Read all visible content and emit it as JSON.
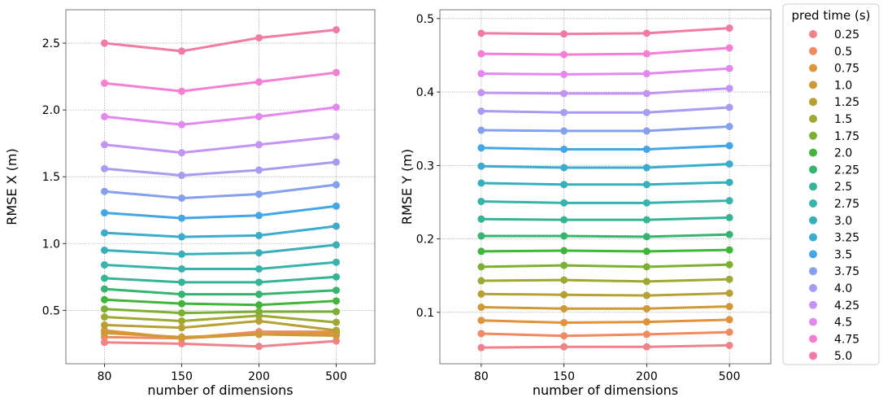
{
  "legend": {
    "title": "pred time (s)",
    "placement": "outside-right",
    "entries": [
      "0.25",
      "0.5",
      "0.75",
      "1.0",
      "1.25",
      "1.5",
      "1.75",
      "2.0",
      "2.25",
      "2.5",
      "2.75",
      "3.0",
      "3.25",
      "3.5",
      "3.75",
      "4.0",
      "4.25",
      "4.5",
      "4.75",
      "5.0"
    ]
  },
  "colors": [
    "#f0838a",
    "#f08a62",
    "#e0933a",
    "#cd9a37",
    "#b7a134",
    "#a0a834",
    "#7daf35",
    "#40b53a",
    "#36b571",
    "#36b596",
    "#37b3ac",
    "#38b0bc",
    "#3bacce",
    "#42a6e8",
    "#85a0ee",
    "#a69cf2",
    "#c394f4",
    "#e487f0",
    "#f47fd3",
    "#f27aa6"
  ],
  "chart_data": [
    {
      "type": "line",
      "xlabel": "number of dimensions",
      "ylabel": "RMSE X (m)",
      "categories": [
        "80",
        "150",
        "200",
        "500"
      ],
      "ylim": [
        0.1,
        2.75
      ],
      "yticks": [
        0.5,
        1.0,
        1.5,
        2.0,
        2.5
      ],
      "ytick_labels": [
        "0.5",
        "1.0",
        "1.5",
        "2.0",
        "2.5"
      ],
      "grid": true,
      "series": [
        {
          "name": "0.25",
          "values": [
            0.26,
            0.25,
            0.23,
            0.27
          ]
        },
        {
          "name": "0.5",
          "values": [
            0.3,
            0.29,
            0.34,
            0.34
          ]
        },
        {
          "name": "0.75",
          "values": [
            0.35,
            0.29,
            0.32,
            0.33
          ]
        },
        {
          "name": "1.0",
          "values": [
            0.33,
            0.3,
            0.32,
            0.31
          ]
        },
        {
          "name": "1.25",
          "values": [
            0.39,
            0.37,
            0.42,
            0.35
          ]
        },
        {
          "name": "1.5",
          "values": [
            0.45,
            0.42,
            0.46,
            0.41
          ]
        },
        {
          "name": "1.75",
          "values": [
            0.51,
            0.48,
            0.49,
            0.49
          ]
        },
        {
          "name": "2.0",
          "values": [
            0.58,
            0.55,
            0.54,
            0.57
          ]
        },
        {
          "name": "2.25",
          "values": [
            0.66,
            0.62,
            0.62,
            0.65
          ]
        },
        {
          "name": "2.5",
          "values": [
            0.74,
            0.71,
            0.71,
            0.75
          ]
        },
        {
          "name": "2.75",
          "values": [
            0.84,
            0.81,
            0.81,
            0.86
          ]
        },
        {
          "name": "3.0",
          "values": [
            0.95,
            0.92,
            0.93,
            0.99
          ]
        },
        {
          "name": "3.25",
          "values": [
            1.08,
            1.05,
            1.06,
            1.13
          ]
        },
        {
          "name": "3.5",
          "values": [
            1.23,
            1.19,
            1.21,
            1.28
          ]
        },
        {
          "name": "3.75",
          "values": [
            1.39,
            1.34,
            1.37,
            1.44
          ]
        },
        {
          "name": "4.0",
          "values": [
            1.56,
            1.51,
            1.55,
            1.61
          ]
        },
        {
          "name": "4.25",
          "values": [
            1.74,
            1.68,
            1.74,
            1.8
          ]
        },
        {
          "name": "4.5",
          "values": [
            1.95,
            1.89,
            1.95,
            2.02
          ]
        },
        {
          "name": "4.75",
          "values": [
            2.2,
            2.14,
            2.21,
            2.28
          ]
        },
        {
          "name": "5.0",
          "values": [
            2.5,
            2.44,
            2.54,
            2.6
          ]
        }
      ]
    },
    {
      "type": "line",
      "xlabel": "number of dimensions",
      "ylabel": "RMSE Y (m)",
      "categories": [
        "80",
        "150",
        "200",
        "500"
      ],
      "ylim": [
        0.03,
        0.512
      ],
      "yticks": [
        0.1,
        0.2,
        0.3,
        0.4,
        0.5
      ],
      "ytick_labels": [
        "0.1",
        "0.2",
        "0.3",
        "0.4",
        "0.5"
      ],
      "grid": true,
      "series": [
        {
          "name": "0.25",
          "values": [
            0.052,
            0.053,
            0.053,
            0.055
          ]
        },
        {
          "name": "0.5",
          "values": [
            0.071,
            0.068,
            0.07,
            0.073
          ]
        },
        {
          "name": "0.75",
          "values": [
            0.089,
            0.086,
            0.087,
            0.09
          ]
        },
        {
          "name": "1.0",
          "values": [
            0.107,
            0.105,
            0.105,
            0.108
          ]
        },
        {
          "name": "1.25",
          "values": [
            0.125,
            0.124,
            0.123,
            0.126
          ]
        },
        {
          "name": "1.5",
          "values": [
            0.143,
            0.144,
            0.142,
            0.145
          ]
        },
        {
          "name": "1.75",
          "values": [
            0.162,
            0.164,
            0.162,
            0.165
          ]
        },
        {
          "name": "2.0",
          "values": [
            0.183,
            0.184,
            0.183,
            0.185
          ]
        },
        {
          "name": "2.25",
          "values": [
            0.204,
            0.204,
            0.203,
            0.206
          ]
        },
        {
          "name": "2.5",
          "values": [
            0.227,
            0.226,
            0.226,
            0.229
          ]
        },
        {
          "name": "2.75",
          "values": [
            0.251,
            0.249,
            0.249,
            0.252
          ]
        },
        {
          "name": "3.0",
          "values": [
            0.276,
            0.274,
            0.274,
            0.277
          ]
        },
        {
          "name": "3.25",
          "values": [
            0.299,
            0.297,
            0.297,
            0.302
          ]
        },
        {
          "name": "3.5",
          "values": [
            0.324,
            0.322,
            0.322,
            0.327
          ]
        },
        {
          "name": "3.75",
          "values": [
            0.348,
            0.347,
            0.347,
            0.353
          ]
        },
        {
          "name": "4.0",
          "values": [
            0.374,
            0.372,
            0.372,
            0.379
          ]
        },
        {
          "name": "4.25",
          "values": [
            0.399,
            0.398,
            0.398,
            0.405
          ]
        },
        {
          "name": "4.5",
          "values": [
            0.425,
            0.424,
            0.425,
            0.432
          ]
        },
        {
          "name": "4.75",
          "values": [
            0.452,
            0.451,
            0.452,
            0.46
          ]
        },
        {
          "name": "5.0",
          "values": [
            0.48,
            0.479,
            0.48,
            0.487
          ]
        }
      ]
    }
  ]
}
